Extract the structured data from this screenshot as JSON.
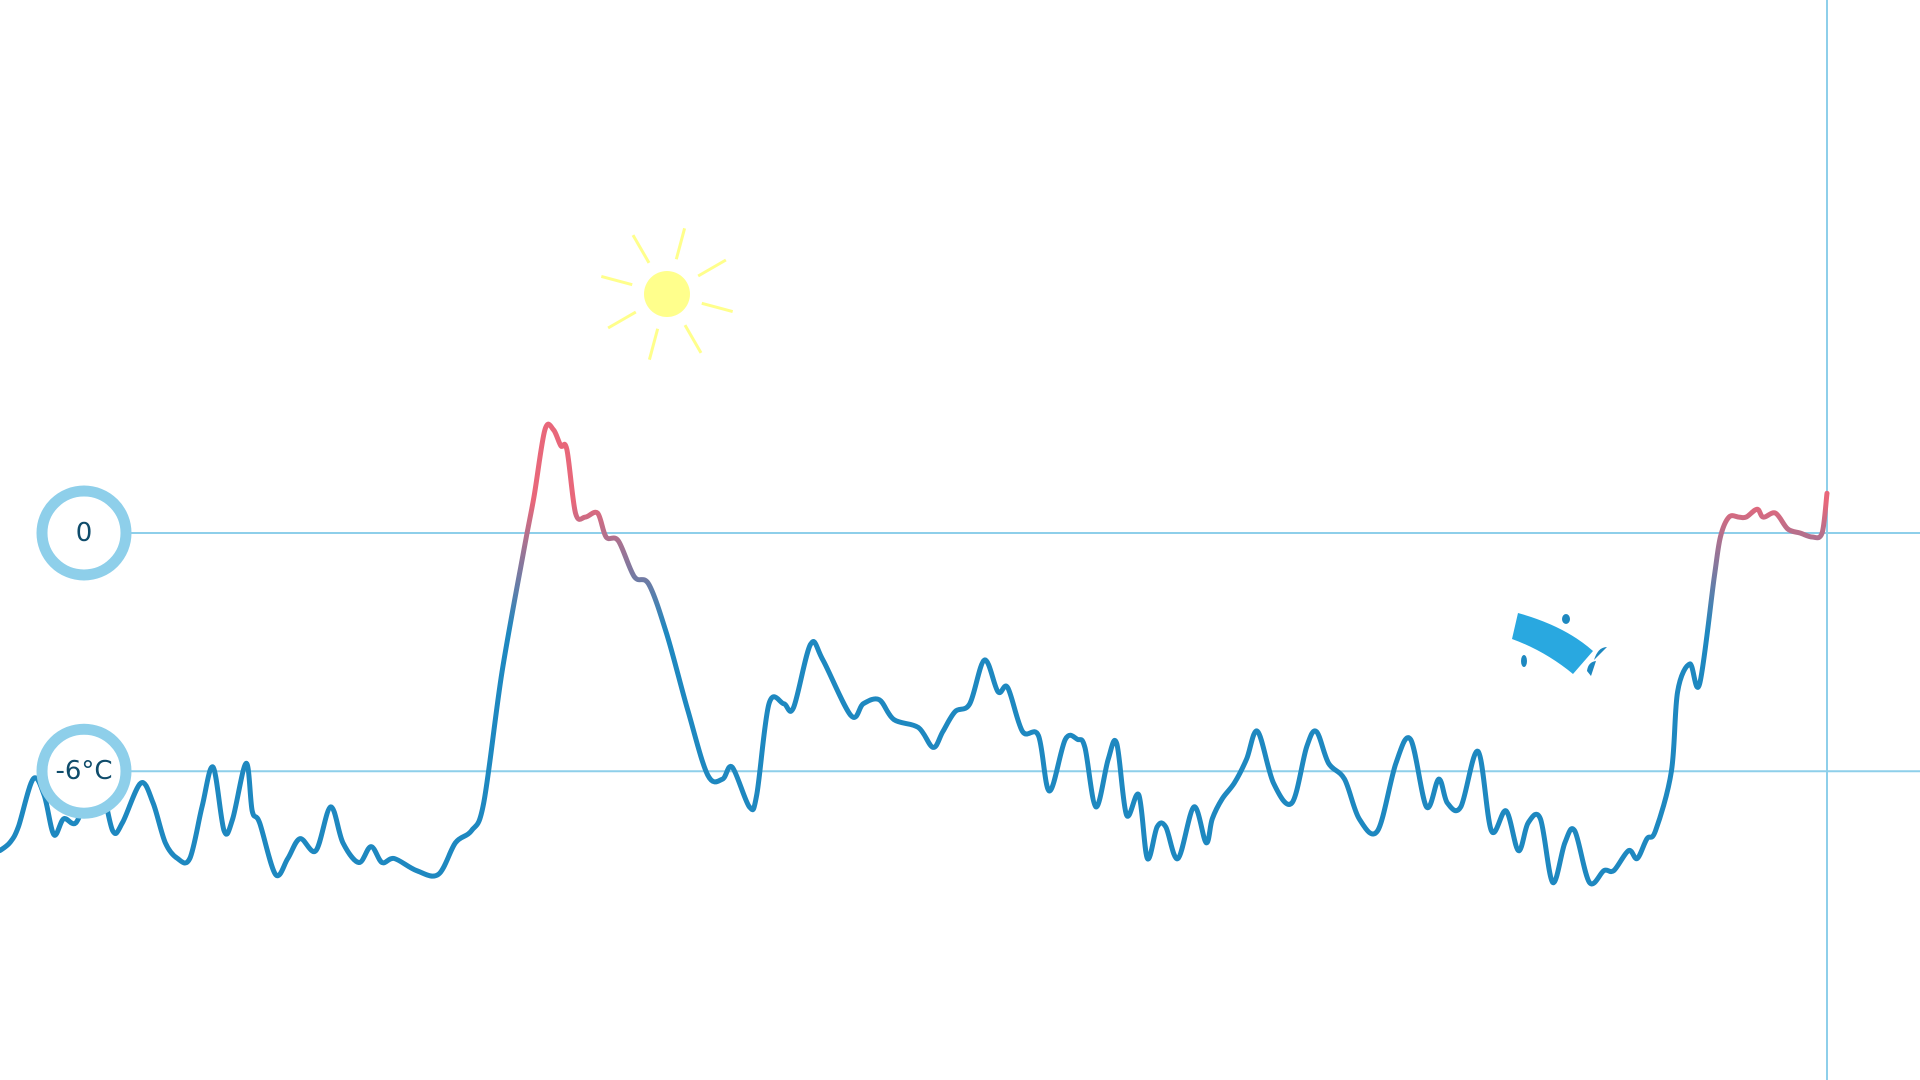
{
  "chart_data": {
    "type": "line",
    "title": "",
    "xlabel": "",
    "ylabel": "",
    "reference_lines": [
      {
        "value": 0,
        "label": "0"
      },
      {
        "value": -6,
        "label": "-6°C"
      }
    ],
    "ylim": [
      -14.4,
      16.4
    ],
    "grid": false,
    "colors": {
      "warm": "#e8677a",
      "cold": "#1e88c0",
      "reference": "#8ecfea",
      "sun": "#ffff8c",
      "icon": "#29a8e0"
    },
    "icons": [
      "sun-icon",
      "weather-icon"
    ],
    "series": [
      {
        "x": [
          0,
          8,
          15,
          27,
          36,
          44,
          52,
          62,
          72,
          82,
          92,
          100,
          115,
          125,
          135,
          145,
          155,
          165,
          174,
          183,
          190,
          201,
          206,
          212,
          225,
          235,
          245,
          258,
          270,
          280,
          293,
          303,
          312,
          322,
          340,
          358,
          372,
          385,
          395,
          410,
          428,
          436,
          445,
          452,
          458,
          463,
          470,
          478,
          488,
          495,
          505,
          518,
          530,
          545,
          562,
          578,
          590,
          598,
          612,
          618,
          628,
          640,
          648,
          662,
          672,
          695,
          705,
          718,
          730,
          750,
          762,
          770,
          780,
          792,
          804,
          815,
          823,
          835,
          848,
          857,
          870,
          880,
          886,
          895,
          905,
          912,
          920,
          930,
          937,
          945,
          952,
          962,
          975,
          985,
          990,
          998,
          1008,
          1018,
          1027,
          1040,
          1055,
          1067,
          1075,
          1085,
          1098,
          1110,
          1125,
          1140,
          1152,
          1165,
          1175,
          1182,
          1193,
          1207,
          1218,
          1230,
          1240,
          1248,
          1258,
          1268,
          1278,
          1286,
          1298,
          1310,
          1318,
          1330,
          1337,
          1345,
          1352,
          1365,
          1370,
          1380,
          1388,
          1400,
          1405,
          1412,
          1420,
          1426,
          1435,
          1440,
          1450,
          1460,
          1470,
          1480,
          1488,
          1492
        ],
        "y": [
          -8.0,
          -7.8,
          -7.4,
          -6.2,
          -6.6,
          -7.6,
          -7.2,
          -7.3,
          -6.6,
          -6.3,
          -7.5,
          -7.3,
          -6.3,
          -6.8,
          -7.8,
          -8.2,
          -8.2,
          -6.9,
          -5.9,
          -7.5,
          -7.2,
          -5.8,
          -7.0,
          -7.3,
          -8.6,
          -8.2,
          -7.7,
          -8.0,
          -6.9,
          -7.8,
          -8.3,
          -7.9,
          -8.3,
          -8.2,
          -8.5,
          -8.6,
          -7.8,
          -7.5,
          -6.8,
          -3.5,
          -0.4,
          0.9,
          2.6,
          2.6,
          2.2,
          2.1,
          0.5,
          0.4,
          0.5,
          -0.1,
          -0.2,
          -1.1,
          -1.3,
          -2.6,
          -4.5,
          -6.1,
          -6.2,
          -5.9,
          -6.9,
          -6.6,
          -4.3,
          -4.3,
          -4.4,
          -2.8,
          -3.2,
          -4.6,
          -4.3,
          -4.2,
          -4.7,
          -4.9,
          -5.4,
          -5.0,
          -4.5,
          -4.3,
          -3.2,
          -4.0,
          -3.9,
          -5.0,
          -5.1,
          -6.5,
          -5.2,
          -5.2,
          -5.4,
          -6.9,
          -5.7,
          -5.3,
          -7.1,
          -6.6,
          -8.2,
          -7.4,
          -7.4,
          -8.2,
          -6.9,
          -7.8,
          -7.2,
          -6.7,
          -6.3,
          -5.7,
          -5.0,
          -6.3,
          -6.8,
          -5.4,
          -5.0,
          -5.8,
          -6.2,
          -7.2,
          -7.5,
          -5.8,
          -5.2,
          -6.9,
          -6.2,
          -6.8,
          -6.9,
          -5.5,
          -7.5,
          -7.0,
          -8.0,
          -7.3,
          -7.2,
          -8.8,
          -7.8,
          -7.5,
          -8.8,
          -8.5,
          -8.5,
          -8.0,
          -8.2,
          -7.7,
          -7.5,
          -6.0,
          -4.0,
          -3.3,
          -3.8,
          -1.1,
          -0.1,
          0.4,
          0.4,
          0.4,
          0.6,
          0.4,
          0.5,
          0.1,
          0.0,
          -0.1,
          0.0,
          1.0
        ]
      }
    ]
  }
}
